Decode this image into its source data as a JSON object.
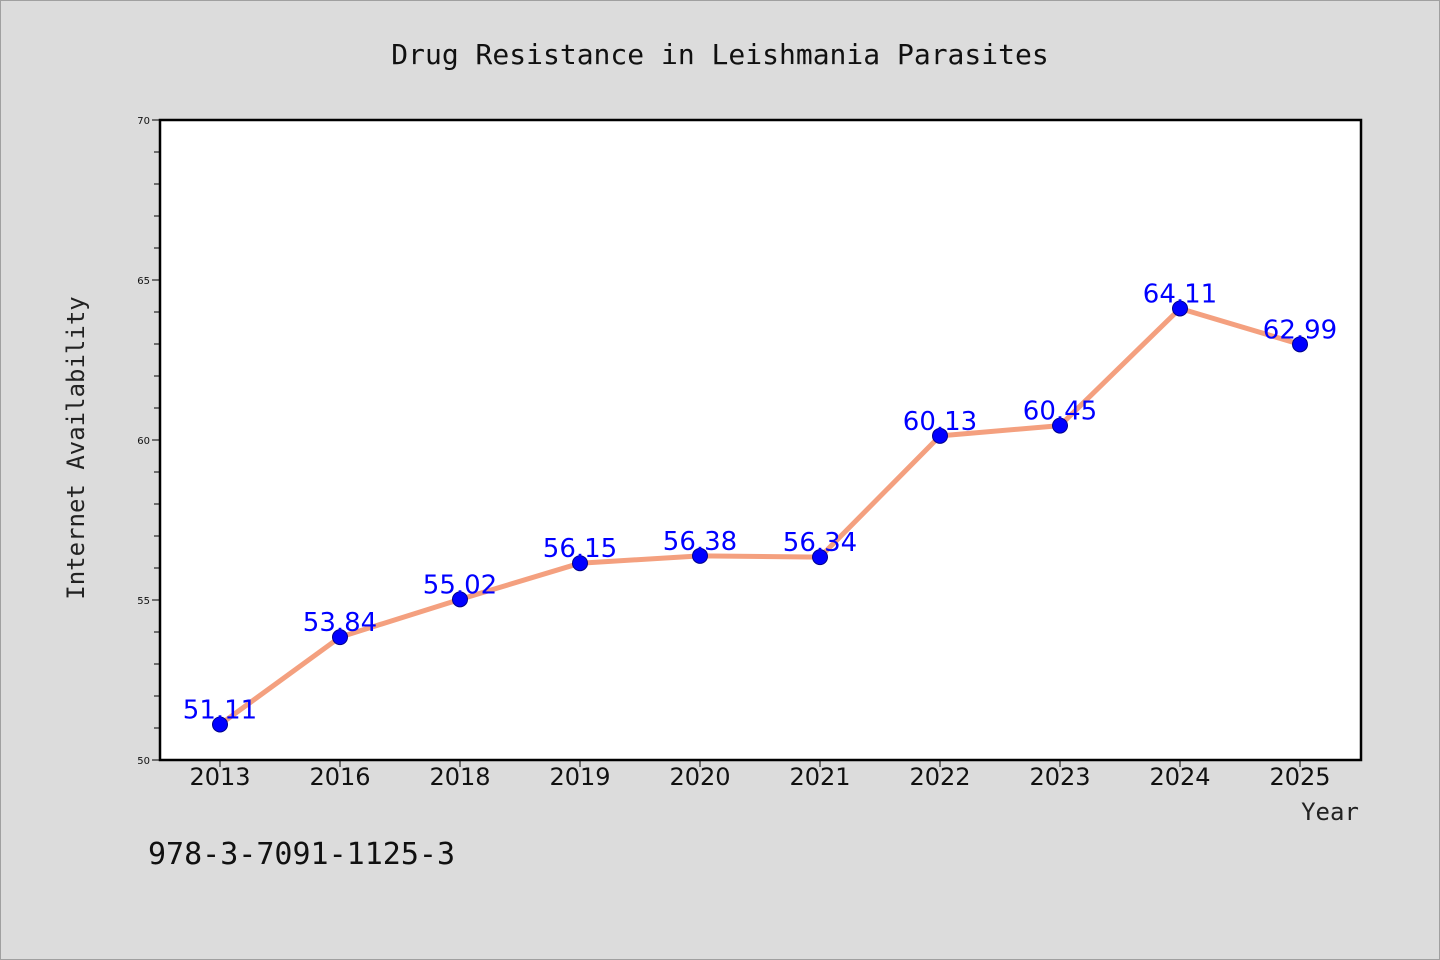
{
  "chart_data": {
    "type": "line",
    "title": "Drug Resistance in Leishmania Parasites",
    "xlabel": "Year",
    "ylabel": "Internet Availability",
    "categories": [
      "2013",
      "2016",
      "2018",
      "2019",
      "2020",
      "2021",
      "2022",
      "2023",
      "2024",
      "2025"
    ],
    "series": [
      {
        "values": [
          51.11,
          53.84,
          55.02,
          56.15,
          56.38,
          56.34,
          60.13,
          60.45,
          64.11,
          62.99
        ]
      }
    ],
    "data_labels": [
      "51.11",
      "53.84",
      "55.02",
      "56.15",
      "56.38",
      "56.34",
      "60.13",
      "60.45",
      "64.11",
      "62.99"
    ],
    "ylim": [
      50,
      70
    ],
    "yticks": [
      "50",
      "55",
      "60",
      "65",
      "70"
    ],
    "grid": false,
    "line_color": "#f4a07f",
    "marker_color": "#0000ff",
    "label_color": "#0000ff"
  },
  "footer": {
    "isbn": "978-3-7091-1125-3"
  }
}
